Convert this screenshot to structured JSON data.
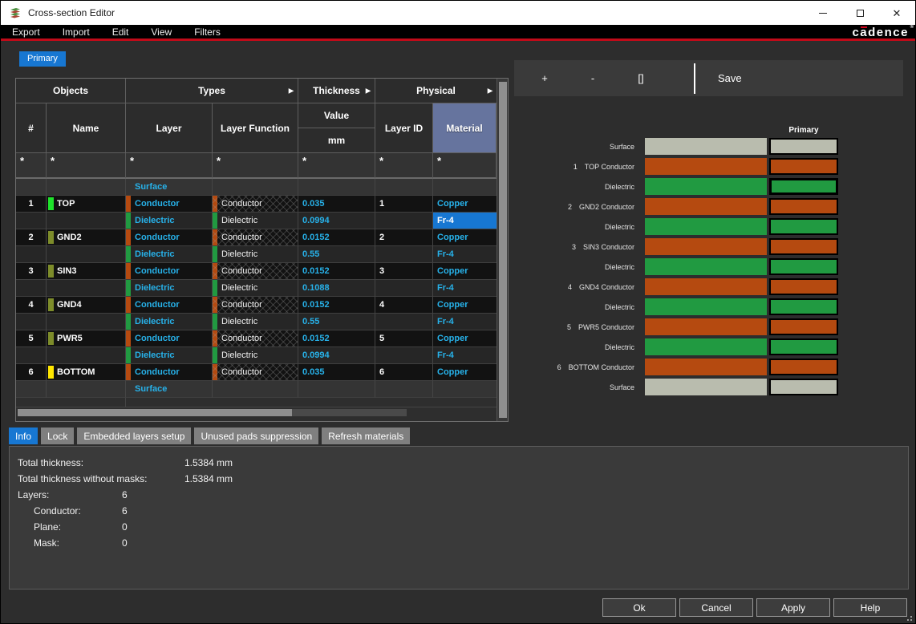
{
  "window": {
    "title": "Cross-section Editor",
    "controls": [
      {
        "name": "minimize"
      },
      {
        "name": "maximize"
      },
      {
        "name": "close"
      }
    ]
  },
  "menu": {
    "items": [
      "Export",
      "Import",
      "Edit",
      "View",
      "Filters"
    ],
    "brand": "cadence"
  },
  "sheet_tab": "Primary",
  "colors": {
    "accent": "#1777d2",
    "conductor": "#b54a10",
    "dielectric": "#219a41",
    "surface": "#b9bcae",
    "cyan_text": "#27b2ea",
    "material_header": "#66749e"
  },
  "toolbar": {
    "items": [
      {
        "label": "+",
        "name": "add"
      },
      {
        "label": "-",
        "name": "remove"
      },
      {
        "label": "[]",
        "name": "brackets"
      },
      {
        "divider": true
      },
      {
        "label": "Save",
        "name": "save"
      }
    ]
  },
  "table": {
    "headers": {
      "group_objects": "Objects",
      "group_types": "Types",
      "group_thickness": "Thickness",
      "group_physical": "Physical",
      "num": "#",
      "name": "Name",
      "layer": "Layer",
      "layer_function": "Layer Function",
      "value": "Value",
      "unit": "mm",
      "layer_id": "Layer ID",
      "material": "Material",
      "filter": "*"
    },
    "rows": [
      {
        "kind": "surface",
        "num": "",
        "name": "",
        "name_swatch": "",
        "layer": "Surface",
        "layer_function": "",
        "value": "",
        "layer_id": "",
        "material": ""
      },
      {
        "kind": "conductor",
        "num": "1",
        "name": "TOP",
        "name_swatch": "#1ee32b",
        "layer": "Conductor",
        "layer_function": "Conductor",
        "value": "0.035",
        "layer_id": "1",
        "material": "Copper"
      },
      {
        "kind": "dielectric",
        "num": "",
        "name": "",
        "name_swatch": "",
        "layer": "Dielectric",
        "layer_function": "Dielectric",
        "value": "0.0994",
        "layer_id": "",
        "material": "Fr-4",
        "selected": true
      },
      {
        "kind": "conductor",
        "num": "2",
        "name": "GND2",
        "name_swatch": "#7d8c2a",
        "layer": "Conductor",
        "layer_function": "Conductor",
        "value": "0.0152",
        "layer_id": "2",
        "material": "Copper"
      },
      {
        "kind": "dielectric",
        "num": "",
        "name": "",
        "name_swatch": "",
        "layer": "Dielectric",
        "layer_function": "Dielectric",
        "value": "0.55",
        "layer_id": "",
        "material": "Fr-4"
      },
      {
        "kind": "conductor",
        "num": "3",
        "name": "SIN3",
        "name_swatch": "#7d8c2a",
        "layer": "Conductor",
        "layer_function": "Conductor",
        "value": "0.0152",
        "layer_id": "3",
        "material": "Copper"
      },
      {
        "kind": "dielectric",
        "num": "",
        "name": "",
        "name_swatch": "",
        "layer": "Dielectric",
        "layer_function": "Dielectric",
        "value": "0.1088",
        "layer_id": "",
        "material": "Fr-4"
      },
      {
        "kind": "conductor",
        "num": "4",
        "name": "GND4",
        "name_swatch": "#7d8c2a",
        "layer": "Conductor",
        "layer_function": "Conductor",
        "value": "0.0152",
        "layer_id": "4",
        "material": "Copper"
      },
      {
        "kind": "dielectric",
        "num": "",
        "name": "",
        "name_swatch": "",
        "layer": "Dielectric",
        "layer_function": "Dielectric",
        "value": "0.55",
        "layer_id": "",
        "material": "Fr-4"
      },
      {
        "kind": "conductor",
        "num": "5",
        "name": "PWR5",
        "name_swatch": "#7d8c2a",
        "layer": "Conductor",
        "layer_function": "Conductor",
        "value": "0.0152",
        "layer_id": "5",
        "material": "Copper"
      },
      {
        "kind": "dielectric",
        "num": "",
        "name": "",
        "name_swatch": "",
        "layer": "Dielectric",
        "layer_function": "Dielectric",
        "value": "0.0994",
        "layer_id": "",
        "material": "Fr-4"
      },
      {
        "kind": "conductor",
        "num": "6",
        "name": "BOTTOM",
        "name_swatch": "#ffe600",
        "layer": "Conductor",
        "layer_function": "Conductor",
        "value": "0.035",
        "layer_id": "6",
        "material": "Copper"
      },
      {
        "kind": "surface",
        "num": "",
        "name": "",
        "name_swatch": "",
        "layer": "Surface",
        "layer_function": "",
        "value": "",
        "layer_id": "",
        "material": ""
      }
    ]
  },
  "stack": {
    "header": "Primary",
    "rows": [
      {
        "num": "",
        "label": "Surface",
        "kind": "surface"
      },
      {
        "num": "1",
        "label": "TOP Conductor",
        "kind": "conductor"
      },
      {
        "num": "",
        "label": "Dielectric",
        "kind": "dielectric",
        "selected": true
      },
      {
        "num": "2",
        "label": "GND2 Conductor",
        "kind": "conductor"
      },
      {
        "num": "",
        "label": "Dielectric",
        "kind": "dielectric"
      },
      {
        "num": "3",
        "label": "SIN3 Conductor",
        "kind": "conductor"
      },
      {
        "num": "",
        "label": "Dielectric",
        "kind": "dielectric"
      },
      {
        "num": "4",
        "label": "GND4 Conductor",
        "kind": "conductor"
      },
      {
        "num": "",
        "label": "Dielectric",
        "kind": "dielectric"
      },
      {
        "num": "5",
        "label": "PWR5 Conductor",
        "kind": "conductor"
      },
      {
        "num": "",
        "label": "Dielectric",
        "kind": "dielectric"
      },
      {
        "num": "6",
        "label": "BOTTOM Conductor",
        "kind": "conductor"
      },
      {
        "num": "",
        "label": "Surface",
        "kind": "surface"
      }
    ]
  },
  "bottom_tabs": [
    {
      "label": "Info",
      "active": true
    },
    {
      "label": "Lock",
      "active": false
    },
    {
      "label": "Embedded layers setup",
      "active": false
    },
    {
      "label": "Unused pads suppression",
      "active": false
    },
    {
      "label": "Refresh materials",
      "active": false
    }
  ],
  "info": {
    "rows": [
      {
        "label": "Total thickness:",
        "value": "1.5384 mm",
        "indent": 0
      },
      {
        "label": "Total thickness without masks:",
        "value": "1.5384 mm",
        "indent": 0
      },
      {
        "label": "Layers:",
        "value": "6",
        "indent": 0
      },
      {
        "label": "Conductor:",
        "value": "6",
        "indent": 1
      },
      {
        "label": "Plane:",
        "value": "0",
        "indent": 1
      },
      {
        "label": "Mask:",
        "value": "0",
        "indent": 1
      }
    ]
  },
  "actions": [
    "Ok",
    "Cancel",
    "Apply",
    "Help"
  ]
}
